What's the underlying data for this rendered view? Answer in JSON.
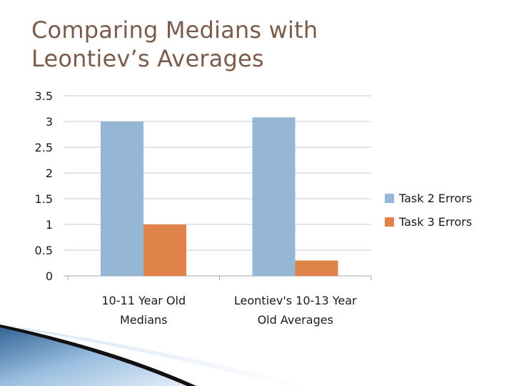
{
  "slide": {
    "title_line1": "Comparing Medians with",
    "title_line2": "Leontiev’s Averages"
  },
  "chart_data": {
    "type": "bar",
    "title": "",
    "xlabel": "",
    "ylabel": "",
    "categories": [
      [
        "10-11 Year Old",
        "Medians"
      ],
      [
        "Leontiev's 10-13 Year",
        "Old Averages"
      ]
    ],
    "series": [
      {
        "name": "Task 2 Errors",
        "values": [
          3.0,
          3.08
        ],
        "color": "#95b6d4"
      },
      {
        "name": "Task 3 Errors",
        "values": [
          1.0,
          0.3
        ],
        "color": "#e0834a"
      }
    ],
    "ylim": [
      0,
      3.5
    ],
    "yticks": [
      "0",
      "0.5",
      "1",
      "1.5",
      "2",
      "2.5",
      "3",
      "3.5"
    ],
    "grid": true,
    "legend_position": "right"
  }
}
